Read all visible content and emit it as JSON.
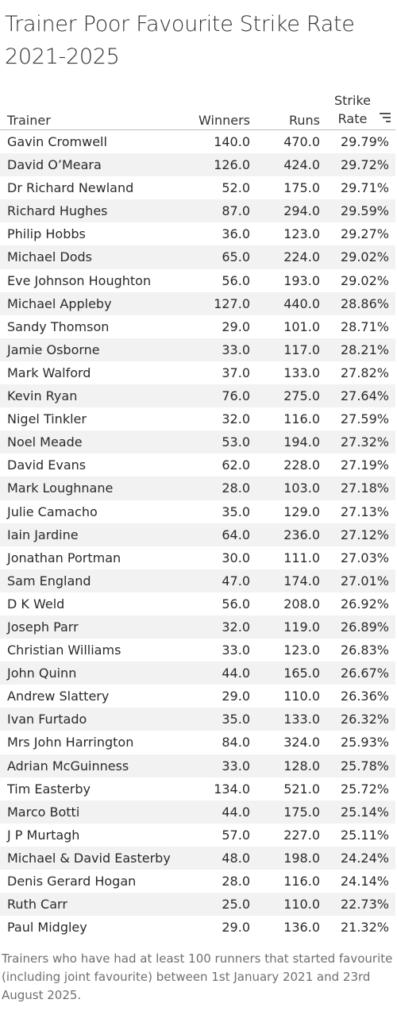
{
  "title": "Trainer Poor Favourite Strike Rate 2021-2025",
  "chart_data": {
    "type": "table",
    "columns": {
      "trainer": "Trainer",
      "winners": "Winners",
      "runs": "Runs",
      "strike_rate_line1": "Strike",
      "strike_rate_line2": "Rate"
    },
    "sort_icon": "sort-descending-icon",
    "rows": [
      {
        "trainer": "Gavin Cromwell",
        "winners": "140.0",
        "runs": "470.0",
        "rate": "29.79%"
      },
      {
        "trainer": "David O’Meara",
        "winners": "126.0",
        "runs": "424.0",
        "rate": "29.72%"
      },
      {
        "trainer": "Dr Richard Newland",
        "winners": "52.0",
        "runs": "175.0",
        "rate": "29.71%"
      },
      {
        "trainer": "Richard Hughes",
        "winners": "87.0",
        "runs": "294.0",
        "rate": "29.59%"
      },
      {
        "trainer": "Philip Hobbs",
        "winners": "36.0",
        "runs": "123.0",
        "rate": "29.27%"
      },
      {
        "trainer": "Michael Dods",
        "winners": "65.0",
        "runs": "224.0",
        "rate": "29.02%"
      },
      {
        "trainer": "Eve Johnson Houghton",
        "winners": "56.0",
        "runs": "193.0",
        "rate": "29.02%"
      },
      {
        "trainer": "Michael Appleby",
        "winners": "127.0",
        "runs": "440.0",
        "rate": "28.86%"
      },
      {
        "trainer": "Sandy Thomson",
        "winners": "29.0",
        "runs": "101.0",
        "rate": "28.71%"
      },
      {
        "trainer": "Jamie Osborne",
        "winners": "33.0",
        "runs": "117.0",
        "rate": "28.21%"
      },
      {
        "trainer": "Mark Walford",
        "winners": "37.0",
        "runs": "133.0",
        "rate": "27.82%"
      },
      {
        "trainer": "Kevin Ryan",
        "winners": "76.0",
        "runs": "275.0",
        "rate": "27.64%"
      },
      {
        "trainer": "Nigel Tinkler",
        "winners": "32.0",
        "runs": "116.0",
        "rate": "27.59%"
      },
      {
        "trainer": "Noel Meade",
        "winners": "53.0",
        "runs": "194.0",
        "rate": "27.32%"
      },
      {
        "trainer": "David Evans",
        "winners": "62.0",
        "runs": "228.0",
        "rate": "27.19%"
      },
      {
        "trainer": "Mark Loughnane",
        "winners": "28.0",
        "runs": "103.0",
        "rate": "27.18%"
      },
      {
        "trainer": "Julie Camacho",
        "winners": "35.0",
        "runs": "129.0",
        "rate": "27.13%"
      },
      {
        "trainer": "Iain Jardine",
        "winners": "64.0",
        "runs": "236.0",
        "rate": "27.12%"
      },
      {
        "trainer": "Jonathan Portman",
        "winners": "30.0",
        "runs": "111.0",
        "rate": "27.03%"
      },
      {
        "trainer": "Sam England",
        "winners": "47.0",
        "runs": "174.0",
        "rate": "27.01%"
      },
      {
        "trainer": "D K Weld",
        "winners": "56.0",
        "runs": "208.0",
        "rate": "26.92%"
      },
      {
        "trainer": "Joseph Parr",
        "winners": "32.0",
        "runs": "119.0",
        "rate": "26.89%"
      },
      {
        "trainer": "Christian Williams",
        "winners": "33.0",
        "runs": "123.0",
        "rate": "26.83%"
      },
      {
        "trainer": "John Quinn",
        "winners": "44.0",
        "runs": "165.0",
        "rate": "26.67%"
      },
      {
        "trainer": "Andrew Slattery",
        "winners": "29.0",
        "runs": "110.0",
        "rate": "26.36%"
      },
      {
        "trainer": "Ivan Furtado",
        "winners": "35.0",
        "runs": "133.0",
        "rate": "26.32%"
      },
      {
        "trainer": "Mrs John Harrington",
        "winners": "84.0",
        "runs": "324.0",
        "rate": "25.93%"
      },
      {
        "trainer": "Adrian McGuinness",
        "winners": "33.0",
        "runs": "128.0",
        "rate": "25.78%"
      },
      {
        "trainer": "Tim Easterby",
        "winners": "134.0",
        "runs": "521.0",
        "rate": "25.72%"
      },
      {
        "trainer": "Marco Botti",
        "winners": "44.0",
        "runs": "175.0",
        "rate": "25.14%"
      },
      {
        "trainer": "J P Murtagh",
        "winners": "57.0",
        "runs": "227.0",
        "rate": "25.11%"
      },
      {
        "trainer": "Michael & David Easterby",
        "winners": "48.0",
        "runs": "198.0",
        "rate": "24.24%"
      },
      {
        "trainer": "Denis Gerard Hogan",
        "winners": "28.0",
        "runs": "116.0",
        "rate": "24.14%"
      },
      {
        "trainer": "Ruth Carr",
        "winners": "25.0",
        "runs": "110.0",
        "rate": "22.73%"
      },
      {
        "trainer": "Paul Midgley",
        "winners": "29.0",
        "runs": "136.0",
        "rate": "21.32%"
      }
    ]
  },
  "footnote": "Trainers who have had at least 100 runners that started favourite (including joint favourite) between 1st January 2021 and 23rd August 2025."
}
